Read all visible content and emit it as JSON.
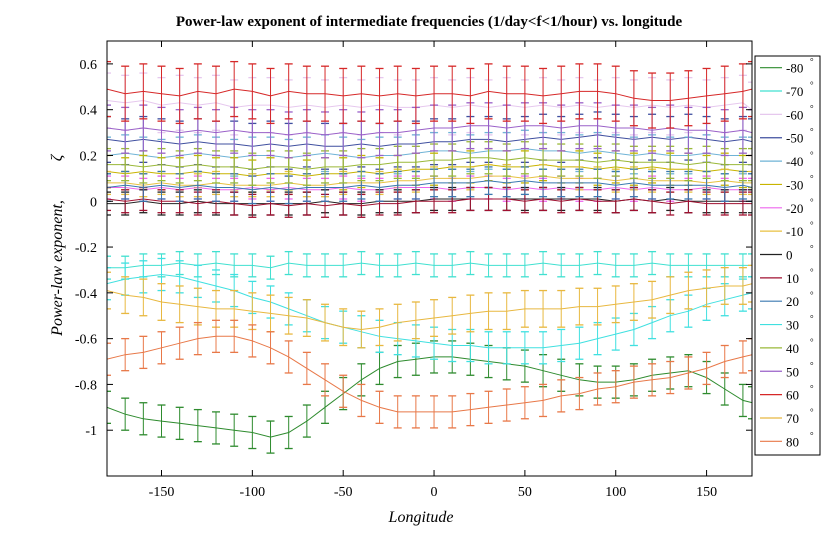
{
  "chart_data": {
    "type": "line",
    "title": "Power-law exponent of intermediate frequencies (1/day<f<1/hour) vs. longitude",
    "xlabel": "Longitude",
    "ylabel": "Power-law exponent,",
    "ylabel_symbol": "ζ",
    "xlim": [
      -180,
      175
    ],
    "ylim": [
      -1.2,
      0.7
    ],
    "xticks": [
      -150,
      -100,
      -50,
      0,
      50,
      100,
      150
    ],
    "yticks": [
      -1,
      -0.8,
      -0.6,
      -0.4,
      -0.2,
      0,
      0.2,
      0.4,
      0.6
    ],
    "ytick_labels": [
      "-1",
      "-0.8",
      "-0.6",
      "-0.4",
      "-0.2",
      "0",
      "0.2",
      "0.4",
      "0.6"
    ],
    "grid": false,
    "legend_position": "outside-right",
    "degree_symbol": "°",
    "x": [
      -180,
      -170,
      -160,
      -150,
      -140,
      -130,
      -120,
      -110,
      -100,
      -90,
      -80,
      -70,
      -60,
      -50,
      -40,
      -30,
      -20,
      -10,
      0,
      10,
      20,
      30,
      40,
      50,
      60,
      70,
      80,
      90,
      100,
      110,
      120,
      130,
      140,
      150,
      160,
      170,
      175
    ],
    "series": [
      {
        "name": "-80",
        "color": "#2e8b2e",
        "errorbar": 0.07,
        "values": [
          -0.9,
          -0.93,
          -0.95,
          -0.96,
          -0.97,
          -0.98,
          -0.99,
          -1.0,
          -1.01,
          -1.03,
          -1.01,
          -0.96,
          -0.9,
          -0.84,
          -0.78,
          -0.73,
          -0.7,
          -0.69,
          -0.68,
          -0.68,
          -0.69,
          -0.7,
          -0.71,
          -0.72,
          -0.74,
          -0.76,
          -0.78,
          -0.79,
          -0.79,
          -0.78,
          -0.76,
          -0.75,
          -0.74,
          -0.77,
          -0.82,
          -0.87,
          -0.88
        ]
      },
      {
        "name": "-70",
        "color": "#40e0d0",
        "errorbar": 0.05,
        "values": [
          -0.29,
          -0.29,
          -0.28,
          -0.28,
          -0.27,
          -0.28,
          -0.27,
          -0.28,
          -0.28,
          -0.29,
          -0.27,
          -0.28,
          -0.28,
          -0.28,
          -0.27,
          -0.28,
          -0.28,
          -0.27,
          -0.28,
          -0.28,
          -0.27,
          -0.28,
          -0.28,
          -0.28,
          -0.27,
          -0.28,
          -0.28,
          -0.27,
          -0.28,
          -0.28,
          -0.27,
          -0.28,
          -0.28,
          -0.28,
          -0.28,
          -0.28,
          -0.28
        ]
      },
      {
        "name": "-60",
        "color": "#e6c8ee",
        "errorbar": 0.12,
        "values": [
          0.44,
          0.43,
          0.44,
          0.42,
          0.43,
          0.42,
          0.43,
          0.41,
          0.42,
          0.42,
          0.41,
          0.42,
          0.41,
          0.42,
          0.41,
          0.42,
          0.41,
          0.41,
          0.42,
          0.41,
          0.42,
          0.41,
          0.42,
          0.41,
          0.42,
          0.41,
          0.42,
          0.41,
          0.42,
          0.41,
          0.42,
          0.41,
          0.42,
          0.41,
          0.42,
          0.43,
          0.4
        ]
      },
      {
        "name": "-50",
        "color": "#3f4f9f",
        "errorbar": 0.1,
        "values": [
          0.27,
          0.26,
          0.27,
          0.26,
          0.25,
          0.26,
          0.25,
          0.25,
          0.24,
          0.25,
          0.24,
          0.25,
          0.24,
          0.24,
          0.25,
          0.24,
          0.25,
          0.25,
          0.26,
          0.26,
          0.27,
          0.27,
          0.26,
          0.27,
          0.28,
          0.27,
          0.28,
          0.29,
          0.28,
          0.27,
          0.28,
          0.27,
          0.28,
          0.27,
          0.26,
          0.27,
          0.26
        ]
      },
      {
        "name": "-40",
        "color": "#6fb3d6",
        "errorbar": 0.08,
        "values": [
          0.2,
          0.21,
          0.2,
          0.19,
          0.2,
          0.21,
          0.2,
          0.19,
          0.2,
          0.2,
          0.19,
          0.2,
          0.21,
          0.2,
          0.19,
          0.2,
          0.2,
          0.21,
          0.22,
          0.22,
          0.21,
          0.22,
          0.22,
          0.23,
          0.22,
          0.22,
          0.21,
          0.22,
          0.21,
          0.2,
          0.21,
          0.2,
          0.2,
          0.21,
          0.2,
          0.2,
          0.2
        ]
      },
      {
        "name": "-30",
        "color": "#c8b400",
        "errorbar": 0.07,
        "values": [
          0.13,
          0.12,
          0.13,
          0.12,
          0.12,
          0.13,
          0.12,
          0.12,
          0.11,
          0.12,
          0.12,
          0.11,
          0.12,
          0.12,
          0.13,
          0.12,
          0.13,
          0.14,
          0.14,
          0.15,
          0.15,
          0.16,
          0.15,
          0.15,
          0.16,
          0.15,
          0.15,
          0.14,
          0.15,
          0.14,
          0.15,
          0.14,
          0.14,
          0.13,
          0.14,
          0.13,
          0.13
        ]
      },
      {
        "name": "-20",
        "color": "#ee66ee",
        "errorbar": 0.05,
        "values": [
          0.06,
          0.06,
          0.05,
          0.06,
          0.05,
          0.06,
          0.05,
          0.05,
          0.06,
          0.05,
          0.06,
          0.05,
          0.05,
          0.06,
          0.05,
          0.05,
          0.06,
          0.06,
          0.06,
          0.05,
          0.06,
          0.06,
          0.05,
          0.06,
          0.05,
          0.06,
          0.05,
          0.05,
          0.06,
          0.05,
          0.06,
          0.05,
          0.05,
          0.06,
          0.05,
          0.05,
          0.05
        ]
      },
      {
        "name": "-10",
        "color": "#e8c040",
        "errorbar": 0.05,
        "values": [
          0.08,
          0.08,
          0.07,
          0.08,
          0.07,
          0.07,
          0.08,
          0.07,
          0.07,
          0.07,
          0.08,
          0.07,
          0.07,
          0.08,
          0.08,
          0.08,
          0.09,
          0.09,
          0.1,
          0.1,
          0.1,
          0.11,
          0.11,
          0.1,
          0.11,
          0.1,
          0.1,
          0.1,
          0.09,
          0.1,
          0.09,
          0.09,
          0.09,
          0.08,
          0.09,
          0.08,
          0.08
        ]
      },
      {
        "name": "0",
        "color": "#222222",
        "errorbar": 0.05,
        "values": [
          -0.01,
          -0.01,
          0.0,
          -0.01,
          -0.01,
          0.0,
          -0.01,
          -0.01,
          -0.01,
          -0.01,
          -0.01,
          -0.01,
          0.0,
          -0.01,
          -0.01,
          0.0,
          0.0,
          0.0,
          0.01,
          0.01,
          0.01,
          0.01,
          0.01,
          0.01,
          0.01,
          0.01,
          0.01,
          0.01,
          0.0,
          0.01,
          0.0,
          0.01,
          0.0,
          0.0,
          0.0,
          0.0,
          0.0
        ]
      },
      {
        "name": "10",
        "color": "#a01030",
        "errorbar": 0.05,
        "values": [
          0.01,
          0.0,
          0.01,
          0.0,
          0.0,
          -0.01,
          0.0,
          -0.01,
          -0.02,
          -0.01,
          -0.02,
          -0.01,
          -0.02,
          -0.01,
          -0.02,
          -0.01,
          -0.01,
          0.0,
          0.0,
          0.0,
          0.01,
          0.01,
          0.01,
          0.0,
          0.01,
          0.0,
          0.01,
          0.0,
          0.0,
          0.01,
          0.0,
          -0.01,
          0.0,
          -0.01,
          -0.01,
          -0.01,
          -0.01
        ]
      },
      {
        "name": "20",
        "color": "#3a78b0",
        "errorbar": 0.06,
        "values": [
          0.06,
          0.07,
          0.06,
          0.07,
          0.06,
          0.07,
          0.06,
          0.06,
          0.05,
          0.06,
          0.05,
          0.06,
          0.06,
          0.06,
          0.07,
          0.06,
          0.07,
          0.07,
          0.08,
          0.08,
          0.08,
          0.09,
          0.08,
          0.09,
          0.08,
          0.08,
          0.08,
          0.08,
          0.07,
          0.08,
          0.07,
          0.07,
          0.07,
          0.07,
          0.06,
          0.07,
          0.06
        ]
      },
      {
        "name": "30",
        "color": "#40e0e0",
        "errorbar": 0.07,
        "values": [
          -0.36,
          -0.34,
          -0.33,
          -0.32,
          -0.33,
          -0.35,
          -0.37,
          -0.39,
          -0.42,
          -0.44,
          -0.47,
          -0.5,
          -0.53,
          -0.55,
          -0.57,
          -0.59,
          -0.6,
          -0.61,
          -0.62,
          -0.63,
          -0.63,
          -0.64,
          -0.64,
          -0.64,
          -0.64,
          -0.63,
          -0.62,
          -0.6,
          -0.58,
          -0.56,
          -0.53,
          -0.5,
          -0.48,
          -0.45,
          -0.43,
          -0.41,
          -0.4
        ]
      },
      {
        "name": "40",
        "color": "#9ab838",
        "errorbar": 0.07,
        "values": [
          0.16,
          0.16,
          0.15,
          0.16,
          0.15,
          0.16,
          0.15,
          0.15,
          0.14,
          0.15,
          0.15,
          0.14,
          0.15,
          0.15,
          0.16,
          0.16,
          0.17,
          0.17,
          0.18,
          0.18,
          0.19,
          0.19,
          0.18,
          0.19,
          0.18,
          0.18,
          0.18,
          0.17,
          0.18,
          0.17,
          0.17,
          0.17,
          0.16,
          0.17,
          0.16,
          0.16,
          0.16
        ]
      },
      {
        "name": "50",
        "color": "#9a60c8",
        "errorbar": 0.1,
        "values": [
          0.32,
          0.31,
          0.32,
          0.31,
          0.3,
          0.31,
          0.3,
          0.31,
          0.3,
          0.3,
          0.29,
          0.3,
          0.29,
          0.3,
          0.29,
          0.3,
          0.3,
          0.31,
          0.32,
          0.32,
          0.33,
          0.33,
          0.32,
          0.33,
          0.33,
          0.32,
          0.33,
          0.33,
          0.32,
          0.32,
          0.31,
          0.32,
          0.31,
          0.31,
          0.3,
          0.31,
          0.3
        ]
      },
      {
        "name": "60",
        "color": "#d62828",
        "errorbar": 0.12,
        "values": [
          0.49,
          0.47,
          0.48,
          0.47,
          0.46,
          0.48,
          0.47,
          0.49,
          0.48,
          0.46,
          0.48,
          0.47,
          0.47,
          0.46,
          0.47,
          0.46,
          0.47,
          0.46,
          0.47,
          0.47,
          0.46,
          0.48,
          0.47,
          0.47,
          0.46,
          0.47,
          0.48,
          0.48,
          0.47,
          0.45,
          0.44,
          0.44,
          0.45,
          0.46,
          0.47,
          0.48,
          0.49
        ]
      },
      {
        "name": "70",
        "color": "#e8b840",
        "errorbar": 0.08,
        "values": [
          -0.39,
          -0.41,
          -0.42,
          -0.44,
          -0.45,
          -0.46,
          -0.47,
          -0.47,
          -0.48,
          -0.49,
          -0.5,
          -0.51,
          -0.53,
          -0.55,
          -0.56,
          -0.55,
          -0.53,
          -0.52,
          -0.51,
          -0.5,
          -0.49,
          -0.48,
          -0.48,
          -0.47,
          -0.47,
          -0.47,
          -0.46,
          -0.46,
          -0.45,
          -0.44,
          -0.43,
          -0.41,
          -0.39,
          -0.38,
          -0.37,
          -0.37,
          -0.36
        ]
      },
      {
        "name": "80",
        "color": "#e87848",
        "errorbar": 0.07,
        "values": [
          -0.69,
          -0.67,
          -0.66,
          -0.64,
          -0.62,
          -0.6,
          -0.59,
          -0.59,
          -0.61,
          -0.64,
          -0.68,
          -0.73,
          -0.78,
          -0.83,
          -0.87,
          -0.9,
          -0.92,
          -0.92,
          -0.92,
          -0.92,
          -0.91,
          -0.9,
          -0.89,
          -0.88,
          -0.87,
          -0.85,
          -0.84,
          -0.82,
          -0.81,
          -0.79,
          -0.78,
          -0.77,
          -0.75,
          -0.73,
          -0.7,
          -0.68,
          -0.67
        ]
      }
    ]
  }
}
